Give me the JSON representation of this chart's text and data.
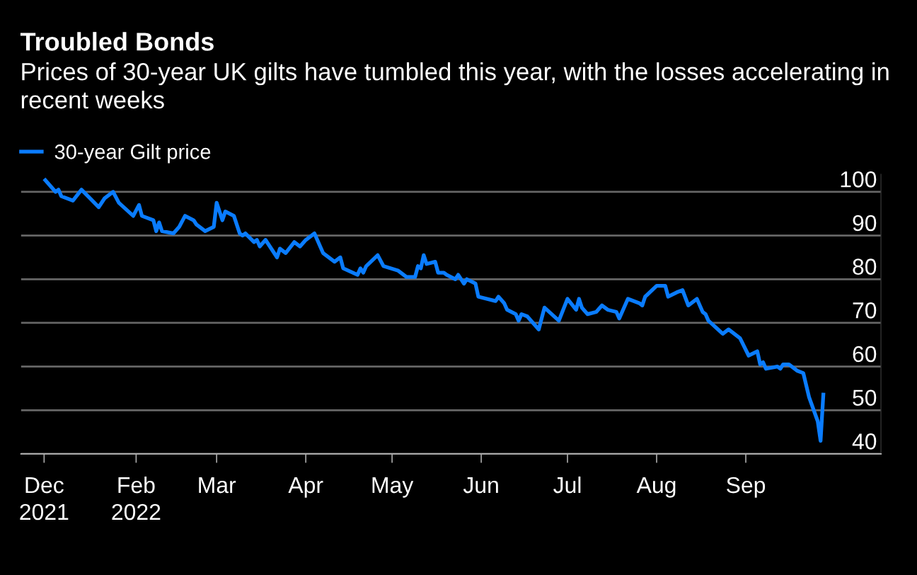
{
  "chart_data": {
    "type": "line",
    "title": "Troubled Bonds",
    "subtitle": "Prices of 30-year UK gilts have tumbled this year, with the losses accelerating in recent weeks",
    "x": [
      "2021-12-31",
      "2022-01-04",
      "2022-01-05",
      "2022-01-06",
      "2022-01-10",
      "2022-01-13",
      "2022-01-16",
      "2022-01-19",
      "2022-01-21",
      "2022-01-24",
      "2022-01-26",
      "2022-01-31",
      "2022-02-02",
      "2022-02-03",
      "2022-02-07",
      "2022-02-08",
      "2022-02-09",
      "2022-02-10",
      "2022-02-14",
      "2022-02-16",
      "2022-02-18",
      "2022-02-21",
      "2022-02-22",
      "2022-02-25",
      "2022-02-28",
      "2022-03-01",
      "2022-03-03",
      "2022-03-04",
      "2022-03-07",
      "2022-03-09",
      "2022-03-10",
      "2022-03-11",
      "2022-03-14",
      "2022-03-15",
      "2022-03-16",
      "2022-03-18",
      "2022-03-22",
      "2022-03-23",
      "2022-03-25",
      "2022-03-28",
      "2022-03-30",
      "2022-04-01",
      "2022-04-04",
      "2022-04-06",
      "2022-04-07",
      "2022-04-11",
      "2022-04-13",
      "2022-04-14",
      "2022-04-19",
      "2022-04-20",
      "2022-04-21",
      "2022-04-22",
      "2022-04-26",
      "2022-04-28",
      "2022-05-03",
      "2022-05-06",
      "2022-05-09",
      "2022-05-10",
      "2022-05-11",
      "2022-05-12",
      "2022-05-13",
      "2022-05-16",
      "2022-05-17",
      "2022-05-19",
      "2022-05-20",
      "2022-05-23",
      "2022-05-24",
      "2022-05-26",
      "2022-05-27",
      "2022-05-30",
      "2022-05-31",
      "2022-06-06",
      "2022-06-07",
      "2022-06-09",
      "2022-06-10",
      "2022-06-13",
      "2022-06-14",
      "2022-06-15",
      "2022-06-17",
      "2022-06-21",
      "2022-06-23",
      "2022-06-28",
      "2022-07-01",
      "2022-07-04",
      "2022-07-05",
      "2022-07-06",
      "2022-07-08",
      "2022-07-11",
      "2022-07-13",
      "2022-07-15",
      "2022-07-18",
      "2022-07-19",
      "2022-07-22",
      "2022-07-26",
      "2022-07-27",
      "2022-07-28",
      "2022-08-01",
      "2022-08-04",
      "2022-08-05",
      "2022-08-08",
      "2022-08-10",
      "2022-08-12",
      "2022-08-15",
      "2022-08-17",
      "2022-08-18",
      "2022-08-19",
      "2022-08-24",
      "2022-08-26",
      "2022-08-30",
      "2022-09-02",
      "2022-09-05",
      "2022-09-06",
      "2022-09-07",
      "2022-09-08",
      "2022-09-12",
      "2022-09-13",
      "2022-09-14",
      "2022-09-16",
      "2022-09-19",
      "2022-09-21",
      "2022-09-23",
      "2022-09-26",
      "2022-09-27",
      "2022-09-28"
    ],
    "series": [
      {
        "name": "30-year Gilt price",
        "color": "#0a7cff",
        "values": [
          103,
          100,
          100.5,
          99,
          98,
          100.5,
          98.5,
          96.5,
          98.5,
          100,
          97.5,
          94.5,
          97,
          94.5,
          93.5,
          91,
          93,
          91,
          90.5,
          92,
          94.5,
          93.5,
          92.5,
          91,
          92,
          97.5,
          93.5,
          95.5,
          94.5,
          90.5,
          90,
          90.5,
          88.5,
          89,
          87.5,
          89,
          85,
          87,
          86,
          88.5,
          87.5,
          89,
          90.5,
          87.5,
          86,
          84,
          85,
          82.5,
          81,
          82.5,
          81.5,
          83,
          85.5,
          83,
          82,
          80.5,
          80.5,
          83,
          82.5,
          85.5,
          83.5,
          84,
          81.5,
          81.5,
          81,
          80,
          81,
          79,
          80,
          79,
          76,
          75,
          76,
          74.5,
          73,
          72,
          70.5,
          72,
          71.5,
          68.5,
          73.5,
          70.5,
          75.5,
          73,
          75.5,
          73.5,
          72,
          72.5,
          74,
          73,
          72.5,
          71,
          75.5,
          74.5,
          74,
          76,
          78.5,
          78.5,
          76,
          77,
          77.5,
          74,
          75.5,
          72.5,
          72,
          70.5,
          67.5,
          68.5,
          66.5,
          62.5,
          63.5,
          60.5,
          61,
          59.5,
          60,
          59.5,
          60.5,
          60.5,
          59,
          58.5,
          53,
          47.5,
          43,
          54
        ]
      }
    ],
    "xlim": [
      "2021-12-23",
      "2022-10-18"
    ],
    "xticks": [
      {
        "value": "2021-12-31",
        "label": "Dec\n2021"
      },
      {
        "value": "2022-02-01",
        "label": "Feb\n2022"
      },
      {
        "value": "2022-03-01",
        "label": "Mar"
      },
      {
        "value": "2022-04-01",
        "label": "Apr"
      },
      {
        "value": "2022-05-01",
        "label": "May"
      },
      {
        "value": "2022-06-01",
        "label": "Jun"
      },
      {
        "value": "2022-07-01",
        "label": "Jul"
      },
      {
        "value": "2022-08-01",
        "label": "Aug"
      },
      {
        "value": "2022-09-01",
        "label": "Sep"
      }
    ],
    "ylim": [
      40,
      104
    ],
    "yticks": [
      40,
      50,
      60,
      70,
      80,
      90,
      100
    ],
    "grid": "y",
    "legend": "top left",
    "marker": "none",
    "line_style": "solid"
  }
}
